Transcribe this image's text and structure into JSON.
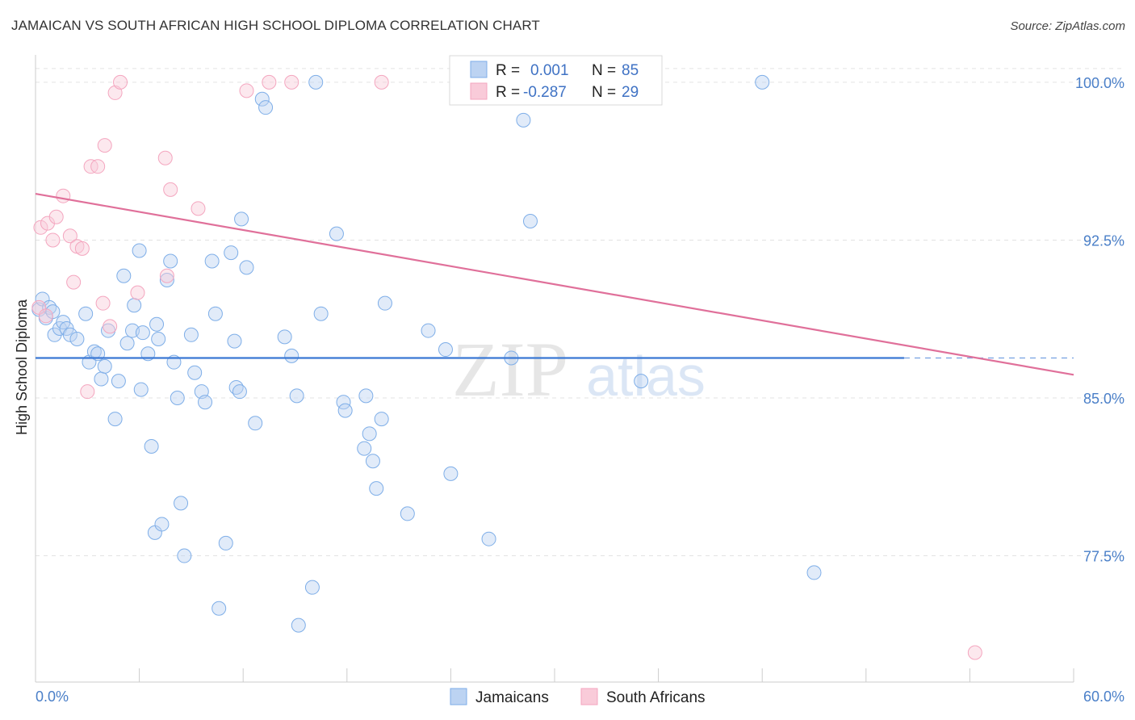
{
  "chart_data": {
    "type": "scatter",
    "title": "JAMAICAN VS SOUTH AFRICAN HIGH SCHOOL DIPLOMA CORRELATION CHART",
    "source": "Source: ZipAtlas.com",
    "ylabel": "High School Diploma",
    "xlabel": "",
    "xlim": [
      0,
      60
    ],
    "ylim": [
      71.5,
      101.3
    ],
    "x_tick_labels": [
      "0.0%",
      "60.0%"
    ],
    "y_ticks": [
      77.5,
      85.0,
      92.5,
      100.0
    ],
    "y_tick_labels": [
      "77.5%",
      "85.0%",
      "92.5%",
      "100.0%"
    ],
    "grid": true,
    "watermark": [
      "ZIP",
      "atlas"
    ],
    "legend_position": "top-center",
    "colors": {
      "jamaicans": "#7eaee8",
      "jamaicans_line": "#3a78d4",
      "south_africans": "#f4a6bf",
      "south_africans_line": "#e0709a",
      "tick": "#4a7fc8"
    },
    "stats": [
      {
        "r_label": "R =",
        "r_value": "0.001",
        "n_label": "N =",
        "n_value": "85"
      },
      {
        "r_label": "R =",
        "r_value": "-0.287",
        "n_label": "N =",
        "n_value": "29"
      }
    ],
    "series": [
      {
        "name": "Jamaicans",
        "trend": {
          "x0": 0,
          "y0": 86.9,
          "x1": 50.2,
          "y1": 86.9,
          "dash_to": 60
        },
        "points": [
          [
            0.2,
            89.2
          ],
          [
            0.4,
            89.7
          ],
          [
            0.6,
            88.8
          ],
          [
            0.8,
            89.3
          ],
          [
            1.0,
            89.1
          ],
          [
            1.1,
            88.0
          ],
          [
            1.4,
            88.3
          ],
          [
            1.6,
            88.6
          ],
          [
            1.8,
            88.3
          ],
          [
            2.0,
            88.0
          ],
          [
            2.4,
            87.8
          ],
          [
            2.9,
            89.0
          ],
          [
            3.1,
            86.7
          ],
          [
            3.4,
            87.2
          ],
          [
            3.6,
            87.1
          ],
          [
            3.8,
            85.9
          ],
          [
            4.0,
            86.5
          ],
          [
            4.2,
            88.2
          ],
          [
            4.6,
            84.0
          ],
          [
            4.8,
            85.8
          ],
          [
            5.1,
            90.8
          ],
          [
            5.3,
            87.6
          ],
          [
            5.6,
            88.2
          ],
          [
            5.7,
            89.4
          ],
          [
            6.0,
            92.0
          ],
          [
            6.1,
            85.4
          ],
          [
            6.2,
            88.1
          ],
          [
            6.5,
            87.1
          ],
          [
            6.7,
            82.7
          ],
          [
            6.9,
            78.6
          ],
          [
            7.1,
            87.8
          ],
          [
            7.3,
            79.0
          ],
          [
            7.6,
            90.6
          ],
          [
            7.8,
            91.5
          ],
          [
            8.0,
            86.7
          ],
          [
            8.2,
            85.0
          ],
          [
            8.4,
            80.0
          ],
          [
            8.6,
            77.5
          ],
          [
            9.0,
            88.0
          ],
          [
            9.2,
            86.2
          ],
          [
            9.6,
            85.3
          ],
          [
            9.8,
            84.8
          ],
          [
            10.2,
            91.5
          ],
          [
            10.4,
            89.0
          ],
          [
            10.6,
            75.0
          ],
          [
            11.0,
            78.1
          ],
          [
            11.3,
            91.9
          ],
          [
            11.5,
            87.7
          ],
          [
            11.6,
            85.5
          ],
          [
            11.8,
            85.3
          ],
          [
            11.9,
            93.5
          ],
          [
            12.2,
            91.2
          ],
          [
            12.7,
            83.8
          ],
          [
            13.1,
            99.2
          ],
          [
            13.3,
            98.8
          ],
          [
            14.4,
            87.9
          ],
          [
            14.8,
            87.0
          ],
          [
            15.1,
            85.1
          ],
          [
            15.2,
            74.2
          ],
          [
            16.0,
            76.0
          ],
          [
            16.2,
            100.0
          ],
          [
            16.5,
            89.0
          ],
          [
            17.4,
            92.8
          ],
          [
            17.8,
            84.8
          ],
          [
            17.9,
            84.4
          ],
          [
            19.0,
            82.6
          ],
          [
            19.1,
            85.1
          ],
          [
            19.3,
            83.3
          ],
          [
            19.5,
            82.0
          ],
          [
            19.7,
            80.7
          ],
          [
            20.0,
            84.0
          ],
          [
            20.2,
            89.5
          ],
          [
            21.5,
            79.5
          ],
          [
            22.7,
            88.2
          ],
          [
            23.7,
            87.3
          ],
          [
            24.0,
            81.4
          ],
          [
            26.2,
            78.3
          ],
          [
            27.5,
            86.9
          ],
          [
            28.2,
            98.2
          ],
          [
            28.6,
            93.4
          ],
          [
            35.0,
            85.8
          ],
          [
            42.0,
            100.0
          ],
          [
            45.0,
            76.7
          ],
          [
            28.0,
            100.0
          ],
          [
            7.0,
            88.5
          ]
        ]
      },
      {
        "name": "South Africans",
        "trend": {
          "x0": 0,
          "y0": 94.7,
          "x1": 60,
          "y1": 86.1
        },
        "points": [
          [
            0.2,
            89.3
          ],
          [
            0.3,
            93.1
          ],
          [
            0.6,
            88.9
          ],
          [
            0.7,
            93.3
          ],
          [
            1.0,
            92.5
          ],
          [
            1.2,
            93.6
          ],
          [
            1.6,
            94.6
          ],
          [
            2.0,
            92.7
          ],
          [
            2.2,
            90.5
          ],
          [
            2.4,
            92.2
          ],
          [
            2.7,
            92.1
          ],
          [
            3.0,
            85.3
          ],
          [
            3.2,
            96.0
          ],
          [
            3.6,
            96.0
          ],
          [
            3.9,
            89.5
          ],
          [
            4.0,
            97.0
          ],
          [
            4.3,
            88.4
          ],
          [
            4.6,
            99.5
          ],
          [
            4.9,
            100.0
          ],
          [
            5.9,
            90.0
          ],
          [
            7.5,
            96.4
          ],
          [
            7.6,
            90.8
          ],
          [
            7.8,
            94.9
          ],
          [
            9.4,
            94.0
          ],
          [
            12.2,
            99.6
          ],
          [
            13.5,
            100.0
          ],
          [
            14.8,
            100.0
          ],
          [
            20.0,
            100.0
          ],
          [
            54.3,
            72.9
          ]
        ]
      }
    ]
  }
}
